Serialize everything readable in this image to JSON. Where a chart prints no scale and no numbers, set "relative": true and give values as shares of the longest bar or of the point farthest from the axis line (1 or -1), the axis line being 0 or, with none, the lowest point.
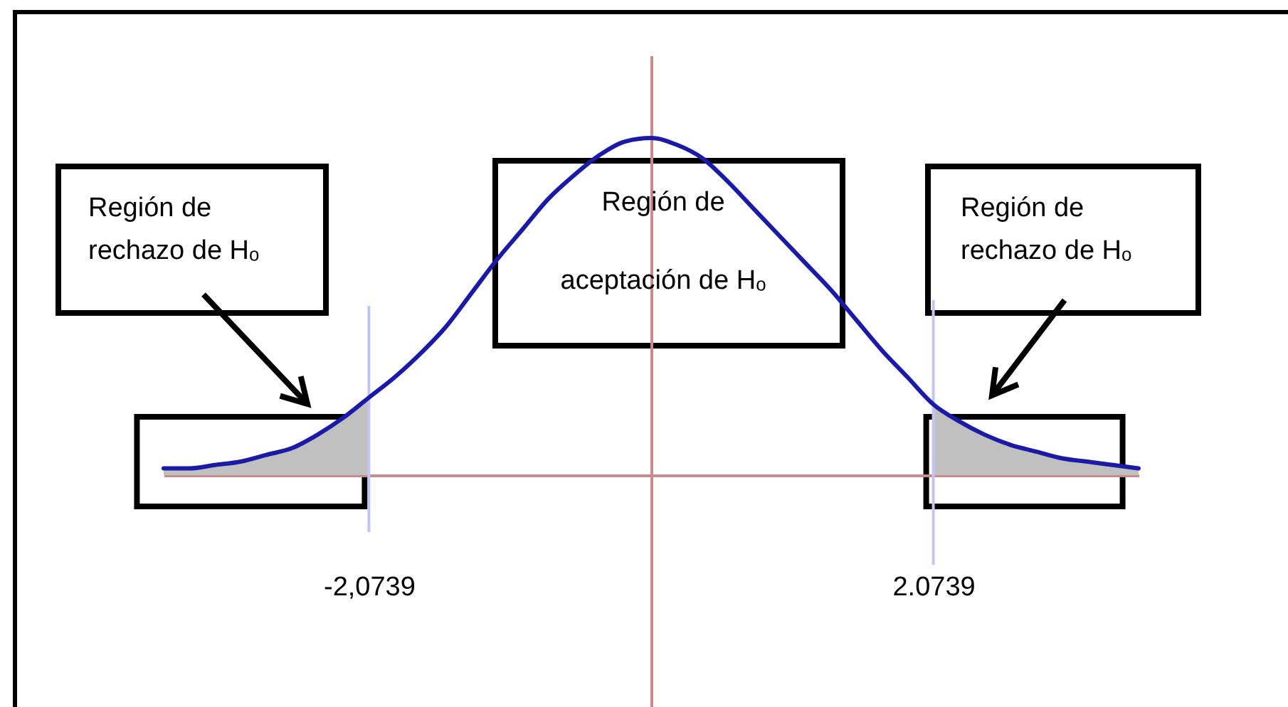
{
  "chart_data": {
    "type": "line",
    "relative": true,
    "categories": [
      null,
      null,
      null,
      null,
      null,
      null,
      null,
      null,
      "-2,0739",
      null,
      null,
      null,
      null,
      null,
      null,
      null,
      null,
      null,
      null,
      null,
      null,
      null,
      null,
      null,
      null,
      null,
      null,
      null,
      null,
      null,
      "2.0739",
      null,
      null,
      null,
      null,
      null,
      null,
      null,
      null
    ],
    "series": [
      {
        "color": "#1a1aa6",
        "values": [
          0.02,
          0.02,
          0.03,
          0.04,
          0.06,
          0.08,
          0.12,
          0.17,
          0.23,
          0.29,
          0.36,
          0.44,
          0.54,
          0.64,
          0.73,
          0.82,
          0.89,
          0.95,
          0.99,
          1,
          0.98,
          0.94,
          0.87,
          0.79,
          0.71,
          0.63,
          0.55,
          0.46,
          0.37,
          0.29,
          0.21,
          0.16,
          0.12,
          0.09,
          0.07,
          0.05,
          0.04,
          0.03,
          0.02
        ]
      },
      {
        "type": "area",
        "color": "#c0c0c0",
        "values": [
          0.02,
          0.02,
          0.03,
          0.04,
          0.06,
          0.08,
          0.12,
          0.17,
          0.23,
          null,
          null,
          null,
          null,
          null,
          null,
          null,
          null,
          null,
          null,
          null,
          null,
          null,
          null,
          null,
          null,
          null,
          null,
          null,
          null,
          null,
          null,
          null,
          null,
          null,
          null,
          null,
          null,
          null,
          null
        ]
      },
      {
        "type": "area",
        "color": "#c0c0c0",
        "values": [
          null,
          null,
          null,
          null,
          null,
          null,
          null,
          null,
          null,
          null,
          null,
          null,
          null,
          null,
          null,
          null,
          null,
          null,
          null,
          null,
          null,
          null,
          null,
          null,
          null,
          null,
          null,
          null,
          null,
          null,
          0.21,
          0.16,
          0.12,
          0.09,
          0.07,
          0.05,
          0.04,
          0.03,
          0.02
        ]
      }
    ],
    "tick_labels": "x",
    "ref_lines": [
      {
        "axis": "x",
        "value": "-2,0739",
        "color": "#c4c4f0"
      },
      {
        "axis": "x",
        "value": "2.0739",
        "color": "#c4c4f0"
      }
    ],
    "annotations": [
      "Región de rechazo de Hₒ",
      "Región de aceptación de Hₒ",
      "Región de rechazo de Hₒ"
    ]
  }
}
